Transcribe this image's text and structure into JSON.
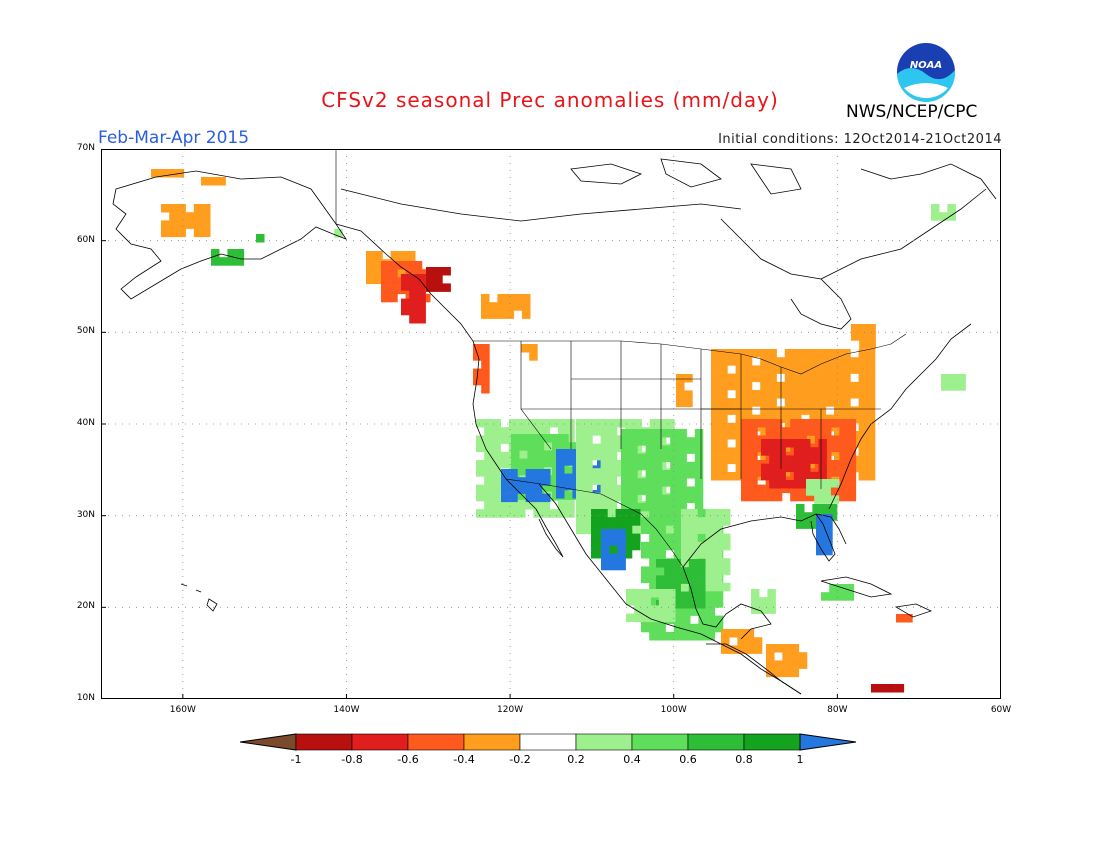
{
  "header": {
    "title": "CFSv2 seasonal Prec anomalies (mm/day)",
    "period": "Feb-Mar-Apr 2015",
    "initial_conditions": "Initial conditions: 12Oct2014-21Oct2014",
    "agency": "NWS/NCEP/CPC",
    "logo_text": "NOAA"
  },
  "map": {
    "lat_labels": [
      "70N",
      "60N",
      "50N",
      "40N",
      "30N",
      "20N",
      "10N"
    ],
    "lon_labels": [
      "160W",
      "140W",
      "120W",
      "100W",
      "80W",
      "60W"
    ],
    "lat_range": [
      10,
      70
    ],
    "lon_range": [
      -170,
      -60
    ],
    "grid": "dotted",
    "region": "North America"
  },
  "colorbar": {
    "labels": [
      "-1",
      "-0.8",
      "-0.6",
      "-0.4",
      "-0.2",
      "0.2",
      "0.4",
      "0.6",
      "0.8",
      "1"
    ],
    "colors": {
      "below_-1": "#7b4a2c",
      "-1_to_-0.8": "#b80f0f",
      "-0.8_to_-0.6": "#e01e1e",
      "-0.6_to_-0.4": "#ff5a1e",
      "-0.4_to_-0.2": "#ff9e1e",
      "-0.2_to_0.2": "#ffffff",
      "0.2_to_0.4": "#9ef08e",
      "0.4_to_0.6": "#5ede5a",
      "0.6_to_0.8": "#2ebd37",
      "0.8_to_1": "#13a31f",
      "above_1": "#2577e0"
    }
  }
}
